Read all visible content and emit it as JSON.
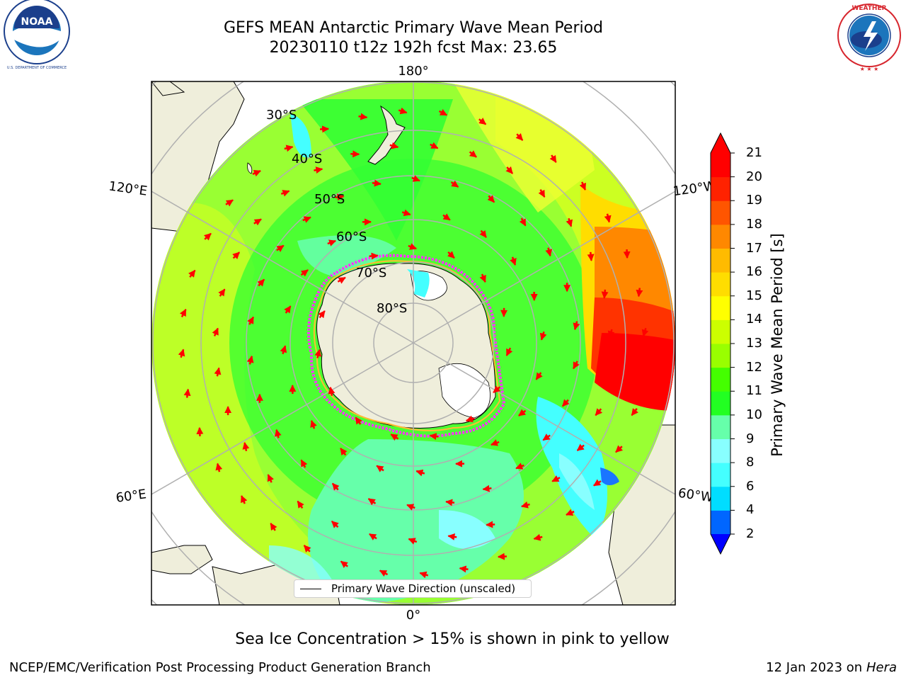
{
  "header": {
    "title_line1": "GEFS MEAN Antarctic Primary Wave Mean Period",
    "title_line2": "20230110 t12z 192h fcst   Max: 23.65"
  },
  "map": {
    "lat_labels": [
      "30°S",
      "40°S",
      "50°S",
      "60°S",
      "70°S",
      "80°S"
    ],
    "lon_labels": {
      "top": "180°",
      "bottom": "0°",
      "upper_left": "120°E",
      "upper_right": "120°W",
      "lower_left": "60°E",
      "lower_right": "60°W"
    },
    "colors": {
      "land": "#efeedb",
      "ice_land": "#ffffff",
      "ocean_base": "#66ff00",
      "green": "#22ff22",
      "light_green": "#99ff33",
      "aqua_green": "#66ffaa",
      "cyan": "#44ffff",
      "yellow": "#ffff00",
      "orange": "#ff8800",
      "red": "#ff0000",
      "arrow": "#ff0000",
      "ice_edge": "#ff33ff"
    }
  },
  "colorbar": {
    "title": "Primary Wave Mean Period [s]",
    "ticks": [
      "21",
      "20",
      "19",
      "18",
      "17",
      "16",
      "15",
      "14",
      "13",
      "12",
      "11",
      "10",
      "9",
      "8",
      "6",
      "4",
      "2"
    ],
    "colors": [
      "#0000ff",
      "#0066ff",
      "#00ddff",
      "#44ffff",
      "#88ffff",
      "#66ffaa",
      "#22ff22",
      "#44ff00",
      "#99ff00",
      "#ccff00",
      "#ffff00",
      "#ffdd00",
      "#ffbb00",
      "#ff8800",
      "#ff5500",
      "#ff2200",
      "#ff0000"
    ]
  },
  "legend": {
    "label": "Primary Wave Direction (unscaled)"
  },
  "caption": "Sea Ice Concentration > 15% is shown in pink to yellow",
  "footer": {
    "left": "NCEP/EMC/Verification Post Processing Product Generation Branch",
    "right_prefix": "12 Jan 2023 on ",
    "right_machine": "Hera"
  },
  "logos": {
    "noaa": "NOAA",
    "noaa_ring": "NATIONAL OCEANIC AND ATMOSPHERIC ADMINISTRATION · U.S. DEPARTMENT OF COMMERCE",
    "nws_ring": "NATIONAL WEATHER SERVICE"
  }
}
